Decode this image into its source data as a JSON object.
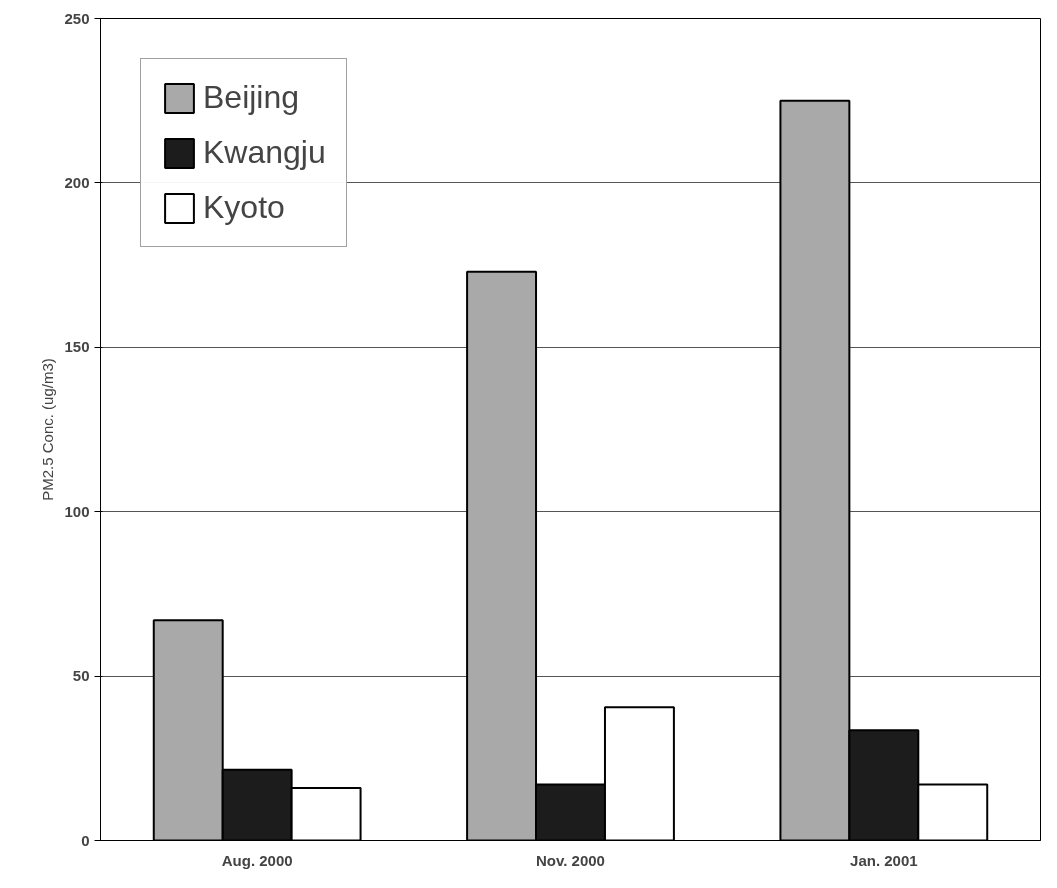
{
  "chart_data": {
    "type": "bar",
    "ylabel": "PM2.5 Conc. (ug/m3)",
    "categories": [
      "Aug. 2000",
      "Nov. 2000",
      "Jan. 2001"
    ],
    "series": [
      {
        "name": "Beijing",
        "color": "#a9a9a9",
        "values": [
          67,
          173,
          225
        ]
      },
      {
        "name": "Kwangju",
        "color": "#1c1c1c",
        "values": [
          21.5,
          17,
          33.5
        ]
      },
      {
        "name": "Kyoto",
        "color": "#ffffff",
        "values": [
          16,
          40.5,
          17
        ]
      }
    ],
    "ylim": [
      0,
      250
    ],
    "yticks": [
      0,
      50,
      100,
      150,
      200,
      250
    ],
    "grid": "y",
    "legend": "top left"
  }
}
